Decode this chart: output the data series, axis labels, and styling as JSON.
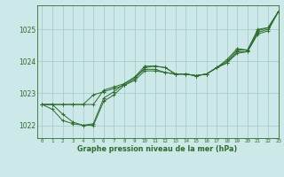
{
  "title": "Graphe pression niveau de la mer (hPa)",
  "bg_color": "#cce8e8",
  "grid_color": "#aacccc",
  "line_color": "#2d6b2d",
  "xlim": [
    -0.5,
    23
  ],
  "ylim": [
    1021.6,
    1025.75
  ],
  "yticks": [
    1022,
    1023,
    1024,
    1025
  ],
  "xticks": [
    0,
    1,
    2,
    3,
    4,
    5,
    6,
    7,
    8,
    9,
    10,
    11,
    12,
    13,
    14,
    15,
    16,
    17,
    18,
    19,
    20,
    21,
    22,
    23
  ],
  "series": [
    [
      1022.65,
      1022.65,
      1022.65,
      1022.65,
      1022.65,
      1022.95,
      1023.05,
      1023.15,
      1023.25,
      1023.4,
      1023.7,
      1023.7,
      1023.65,
      1023.6,
      1023.6,
      1023.55,
      1023.6,
      1023.8,
      1023.95,
      1024.25,
      1024.3,
      1024.85,
      1024.95,
      1025.55
    ],
    [
      1022.65,
      1022.5,
      1022.15,
      1022.05,
      1022.0,
      1022.05,
      1022.85,
      1023.05,
      1023.3,
      1023.5,
      1023.85,
      1023.85,
      1023.8,
      1023.6,
      1023.6,
      1023.55,
      1023.6,
      1023.8,
      1024.05,
      1024.4,
      1024.35,
      1025.0,
      1025.05,
      1025.55
    ],
    [
      1022.65,
      1022.65,
      1022.35,
      1022.1,
      1022.0,
      1022.0,
      1022.75,
      1022.95,
      1023.25,
      1023.45,
      1023.8,
      1023.85,
      1023.8,
      1023.6,
      1023.6,
      1023.55,
      1023.6,
      1023.8,
      1024.0,
      1024.35,
      1024.35,
      1024.95,
      1025.05,
      1025.55
    ],
    [
      1022.65,
      1022.65,
      1022.65,
      1022.65,
      1022.65,
      1022.65,
      1023.1,
      1023.2,
      1023.3,
      1023.5,
      1023.75,
      1023.75,
      1023.65,
      1023.6,
      1023.6,
      1023.55,
      1023.6,
      1023.8,
      1023.95,
      1024.3,
      1024.3,
      1024.9,
      1025.0,
      1025.55
    ]
  ]
}
